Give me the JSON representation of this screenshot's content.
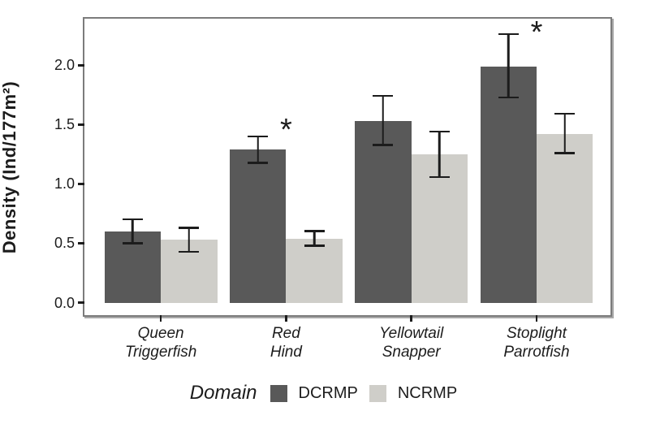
{
  "figure": {
    "background": "#ffffff",
    "panel_border_color": "#7c7c7c",
    "text_color": "#1c1c1c"
  },
  "chart_data": {
    "type": "bar",
    "title": "",
    "xlabel": "",
    "ylabel": "Density (Ind/177m²)",
    "categories": [
      "Queen Triggerfish",
      "Red Hind",
      "Yellowtail Snapper",
      "Stoplight Parrotfish"
    ],
    "category_label_lines": [
      [
        "Queen",
        "Triggerfish"
      ],
      [
        "Red",
        "Hind"
      ],
      [
        "Yellowtail",
        "Snapper"
      ],
      [
        "Stoplight",
        "Parrotfish"
      ]
    ],
    "series": [
      {
        "name": "DCRMP",
        "color": "#595959",
        "values": [
          0.6,
          1.29,
          1.53,
          1.99
        ],
        "error_low": [
          0.49,
          1.17,
          1.32,
          1.72
        ],
        "error_high": [
          0.71,
          1.41,
          1.75,
          2.27
        ]
      },
      {
        "name": "NCRMP",
        "color": "#cfcec9",
        "values": [
          0.53,
          0.54,
          1.25,
          1.42
        ],
        "error_low": [
          0.42,
          0.47,
          1.05,
          1.25
        ],
        "error_high": [
          0.64,
          0.61,
          1.45,
          1.6
        ]
      }
    ],
    "significance_markers": [
      {
        "category_index": 1,
        "series": "DCRMP",
        "label": "*",
        "y": 1.49
      },
      {
        "category_index": 3,
        "series": "DCRMP",
        "label": "*",
        "y": 2.31
      }
    ],
    "yticks": [
      0.0,
      0.5,
      1.0,
      1.5,
      2.0
    ],
    "ytick_labels": [
      "0.0",
      "0.5",
      "1.0",
      "1.5",
      "2.0"
    ],
    "ylim": [
      -0.106,
      2.393
    ],
    "xlim": [
      0.39,
      4.59
    ],
    "bar_width": 0.45,
    "grid": "off",
    "error_bar_color": "#1c1c1c",
    "legend": {
      "position": "bottom",
      "title": "Domain",
      "entries": [
        {
          "label": "DCRMP",
          "color": "#595959"
        },
        {
          "label": "NCRMP",
          "color": "#cfcec9"
        }
      ]
    }
  }
}
